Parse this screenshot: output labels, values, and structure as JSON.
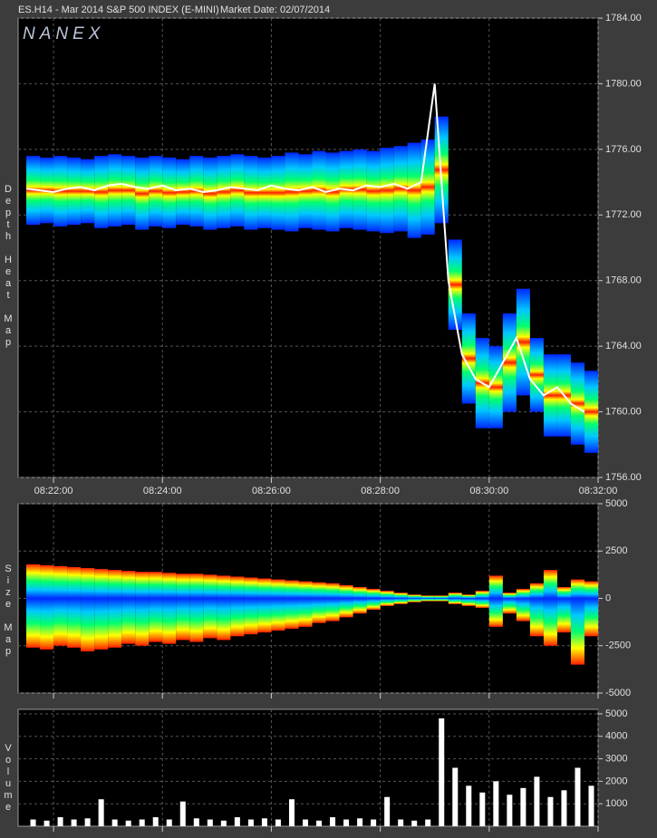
{
  "header": {
    "symbol": "ES.H14 - Mar 2014 S&P 500 INDEX (E-MINI)",
    "market_date": "Market Date: 02/07/2014",
    "logo": "NANEX"
  },
  "chart_data": [
    {
      "type": "depth",
      "title": "Depth Heat Map",
      "x": [
        501.5,
        501.75,
        502,
        502.25,
        502.5,
        502.75,
        503,
        503.25,
        503.5,
        503.75,
        504,
        504.25,
        504.5,
        504.75,
        505,
        505.25,
        505.5,
        505.75,
        506,
        506.25,
        506.5,
        506.75,
        507,
        507.25,
        507.5,
        507.75,
        508,
        508.25,
        508.5,
        508.75,
        509,
        509.25,
        509.5,
        509.75,
        510,
        510.25,
        510.5,
        510.75,
        511,
        511.25,
        511.5,
        511.75
      ],
      "xlim": [
        501.35,
        512
      ],
      "xticks": [
        {
          "value": 502,
          "label": "08:22:00"
        },
        {
          "value": 504,
          "label": "08:24:00"
        },
        {
          "value": 506,
          "label": "08:26:00"
        },
        {
          "value": 508,
          "label": "08:28:00"
        },
        {
          "value": 510,
          "label": "08:30:00"
        },
        {
          "value": 512,
          "label": "08:32:00"
        }
      ],
      "ylim": [
        1756,
        1784
      ],
      "yticks": [
        {
          "value": 1756,
          "label": "1756.00"
        },
        {
          "value": 1760,
          "label": "1760.00"
        },
        {
          "value": 1764,
          "label": "1764.00"
        },
        {
          "value": 1768,
          "label": "1768.00"
        },
        {
          "value": 1772,
          "label": "1772.00"
        },
        {
          "value": 1776,
          "label": "1776.00"
        },
        {
          "value": 1780,
          "label": "1780.00"
        },
        {
          "value": 1784,
          "label": "1784.00"
        }
      ],
      "depth_high": [
        1775.6,
        1775.5,
        1775.6,
        1775.5,
        1775.4,
        1775.6,
        1775.7,
        1775.6,
        1775.5,
        1775.6,
        1775.5,
        1775.4,
        1775.6,
        1775.5,
        1775.6,
        1775.7,
        1775.6,
        1775.5,
        1775.6,
        1775.8,
        1775.7,
        1775.9,
        1775.8,
        1775.9,
        1776.0,
        1775.9,
        1776.1,
        1776.2,
        1776.4,
        1776.6,
        1778.0,
        1770.5,
        1766.0,
        1764.5,
        1764.0,
        1766.0,
        1767.5,
        1764.5,
        1763.5,
        1763.5,
        1763.0,
        1762.5
      ],
      "depth_low": [
        1771.4,
        1771.5,
        1771.3,
        1771.4,
        1771.5,
        1771.2,
        1771.3,
        1771.4,
        1771.1,
        1771.3,
        1771.2,
        1771.4,
        1771.3,
        1771.1,
        1771.2,
        1771.3,
        1771.1,
        1771.2,
        1771.1,
        1771.0,
        1771.2,
        1771.1,
        1771.0,
        1771.2,
        1771.1,
        1771.0,
        1770.9,
        1771.0,
        1770.6,
        1770.8,
        1771.5,
        1765.0,
        1760.5,
        1759.0,
        1759.0,
        1760.0,
        1761.0,
        1760.0,
        1758.5,
        1758.5,
        1758.0,
        1757.5
      ],
      "price": [
        1773.6,
        1773.5,
        1773.4,
        1773.6,
        1773.7,
        1773.5,
        1773.8,
        1773.9,
        1773.7,
        1773.6,
        1773.8,
        1773.5,
        1773.6,
        1773.4,
        1773.5,
        1773.7,
        1773.6,
        1773.5,
        1773.8,
        1773.6,
        1773.5,
        1773.7,
        1773.4,
        1773.6,
        1773.5,
        1773.8,
        1773.7,
        1773.9,
        1773.6,
        1774.0,
        1780.0,
        1768.0,
        1763.5,
        1762.0,
        1761.5,
        1763.0,
        1764.5,
        1762.0,
        1761.0,
        1761.5,
        1760.5,
        1760.0
      ],
      "price_color": "#ffffff",
      "colorscale": [
        "#0028ff",
        "#00c8ff",
        "#00ff6e",
        "#ffff00",
        "#ff1e00"
      ],
      "grid": true
    },
    {
      "type": "size",
      "title": "Size Map",
      "bid": [
        1800,
        1750,
        1700,
        1650,
        1600,
        1550,
        1500,
        1450,
        1400,
        1400,
        1350,
        1300,
        1300,
        1250,
        1200,
        1150,
        1100,
        1050,
        1000,
        950,
        900,
        850,
        800,
        700,
        600,
        500,
        400,
        300,
        200,
        150,
        150,
        300,
        200,
        400,
        1200,
        300,
        500,
        800,
        1500,
        600,
        1000,
        900
      ],
      "ask": [
        -2600,
        -2700,
        -2500,
        -2600,
        -2800,
        -2700,
        -2600,
        -2400,
        -2500,
        -2300,
        -2400,
        -2200,
        -2300,
        -2100,
        -2200,
        -2000,
        -1900,
        -1800,
        -1700,
        -1600,
        -1500,
        -1300,
        -1200,
        -1000,
        -800,
        -600,
        -400,
        -300,
        -200,
        -150,
        -150,
        -300,
        -400,
        -500,
        -1500,
        -800,
        -1200,
        -2000,
        -2500,
        -1800,
        -3500,
        -2000
      ],
      "ylim": [
        -5000,
        5000
      ],
      "yticks": [
        -5000,
        -2500,
        0,
        2500,
        5000
      ],
      "colorscale": [
        "#0028ff",
        "#00c8ff",
        "#00ff6e",
        "#ffff00",
        "#ff1e00"
      ],
      "grid": true
    },
    {
      "type": "volume",
      "title": "Volume",
      "values": [
        300,
        250,
        400,
        300,
        350,
        1200,
        300,
        250,
        300,
        400,
        300,
        1100,
        350,
        300,
        250,
        400,
        300,
        350,
        300,
        1200,
        300,
        250,
        400,
        300,
        350,
        300,
        1300,
        300,
        250,
        300,
        4800,
        2600,
        1800,
        1500,
        2000,
        1400,
        1700,
        2200,
        1300,
        1600,
        2600,
        1800
      ],
      "color": "#ffffff",
      "ylim": [
        0,
        5200
      ],
      "yticks": [
        1000,
        2000,
        3000,
        4000,
        5000
      ],
      "grid": true
    }
  ]
}
